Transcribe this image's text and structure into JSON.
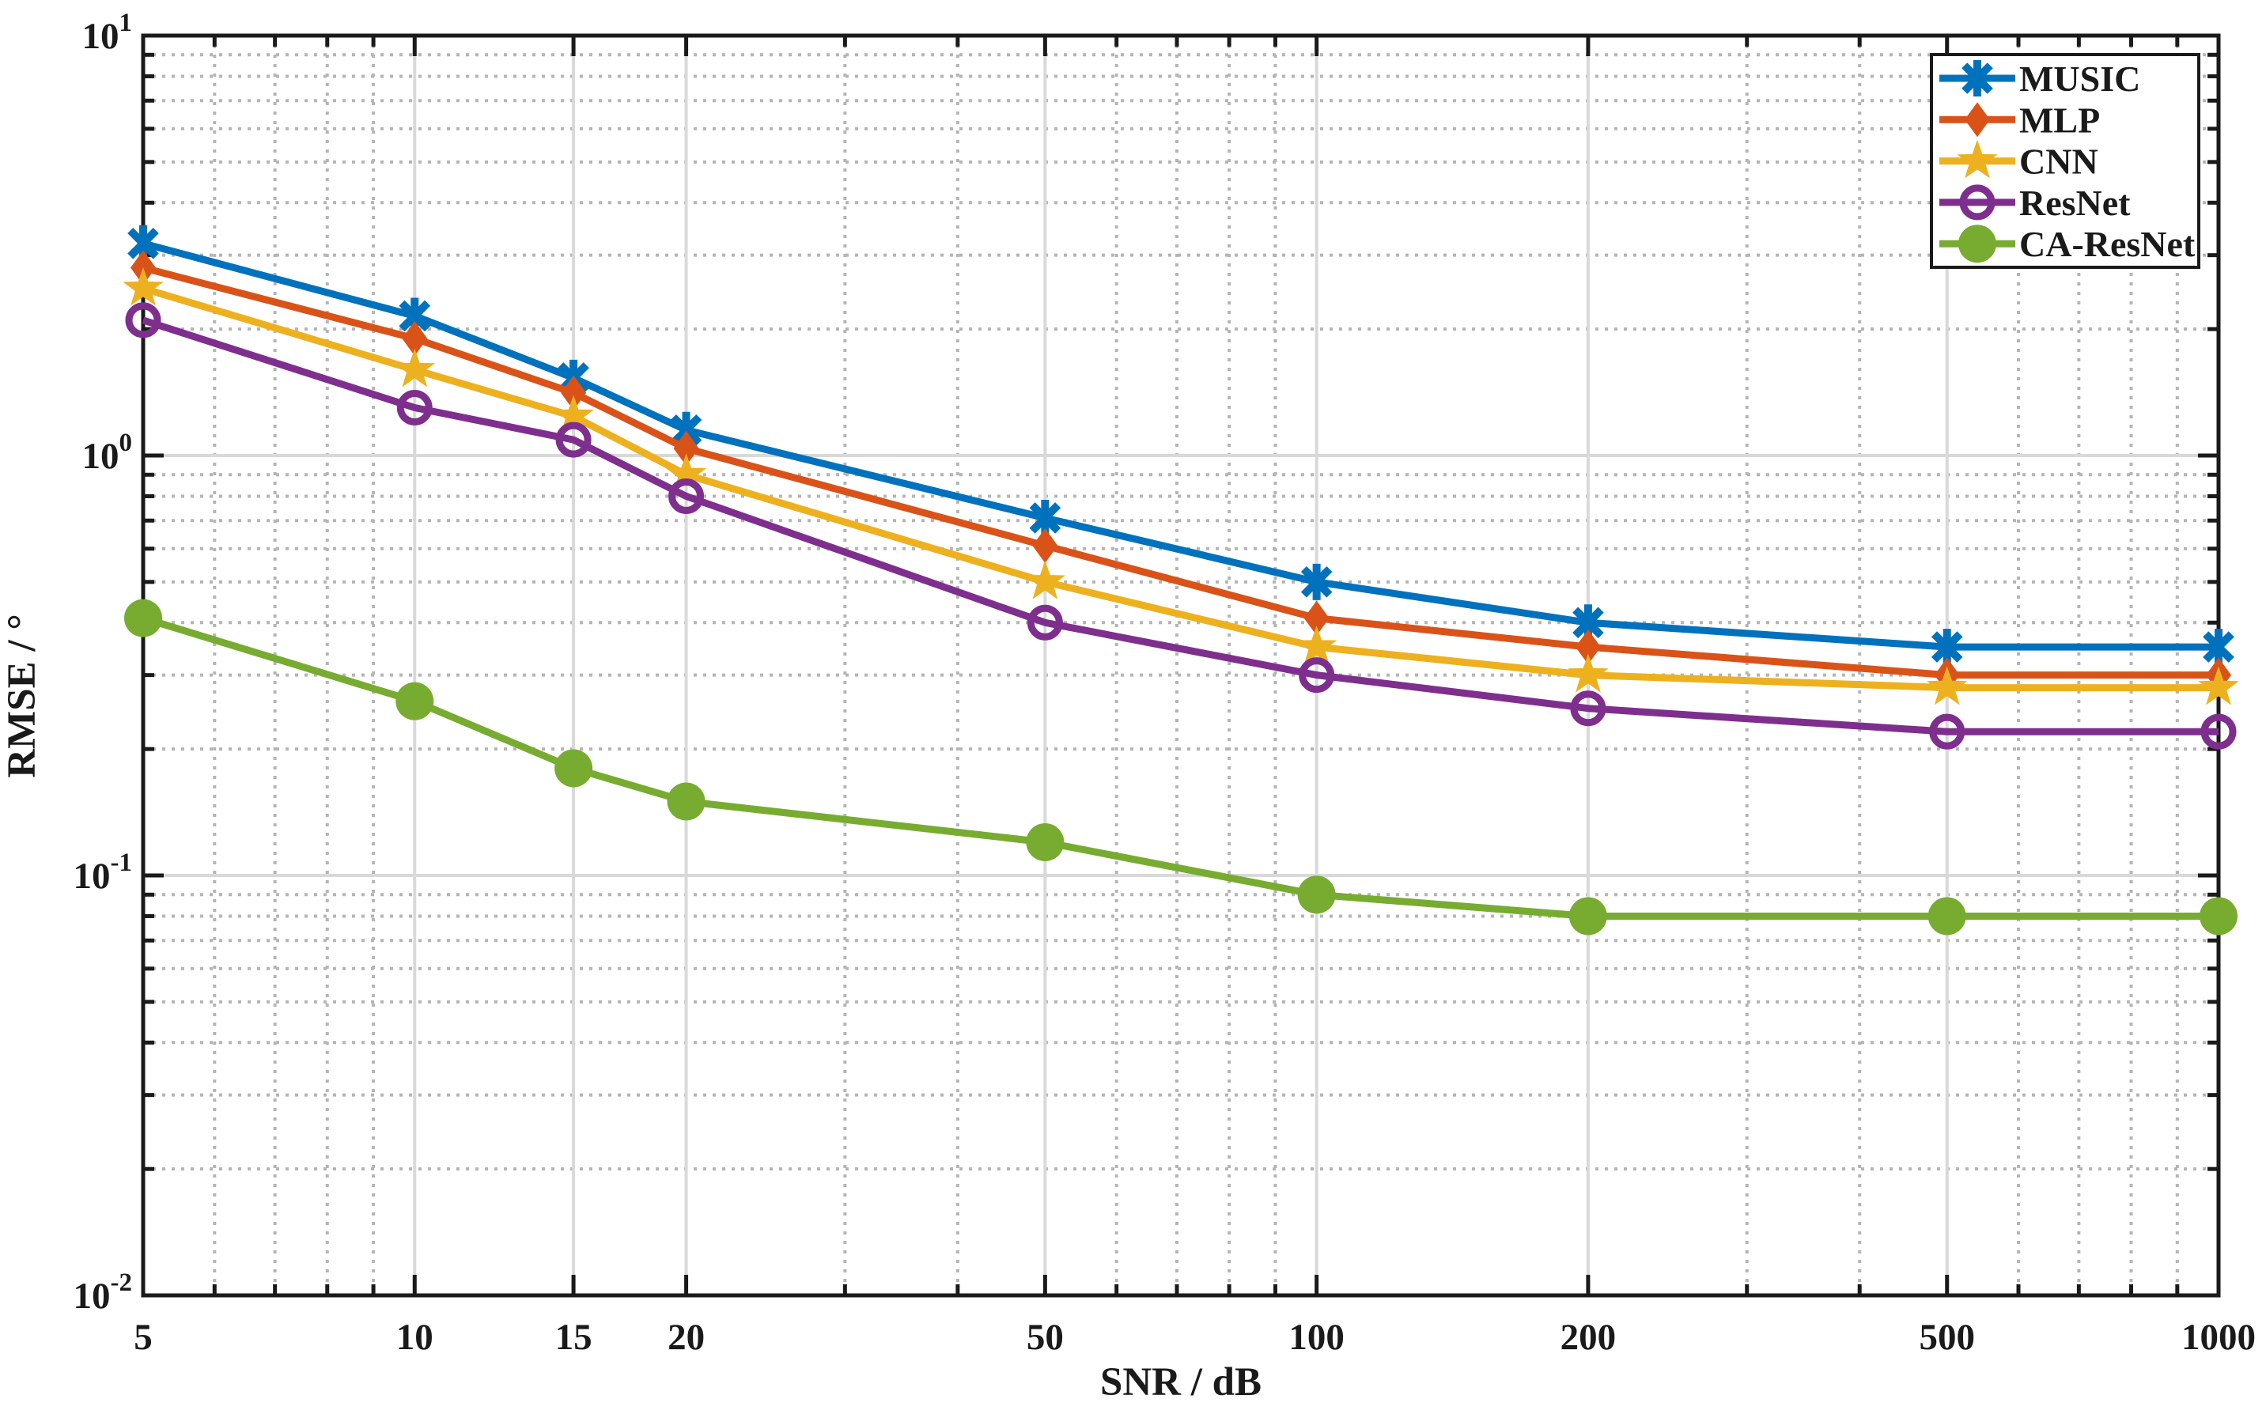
{
  "chart_data": {
    "type": "line",
    "title": "",
    "xlabel": "SNR / dB",
    "ylabel": "RMSE / °",
    "x_scale": "log",
    "y_scale": "log",
    "xlim": [
      5,
      1000
    ],
    "ylim": [
      0.01,
      10
    ],
    "grid": {
      "major": "solid-gray",
      "minor": "dotted-gray"
    },
    "x": [
      5,
      10,
      15,
      20,
      50,
      100,
      200,
      500,
      1000
    ],
    "x_tick_labels": [
      "5",
      "10",
      "15",
      "20",
      "50",
      "100",
      "200",
      "500",
      "1000"
    ],
    "y_tick_labels": [
      {
        "value": 10,
        "base": "10",
        "exp": "1"
      },
      {
        "value": 1,
        "base": "10",
        "exp": "0"
      },
      {
        "value": 0.1,
        "base": "10",
        "exp": "-1"
      },
      {
        "value": 0.01,
        "base": "10",
        "exp": "-2"
      }
    ],
    "legend": {
      "position": "top-right",
      "entries": [
        "MUSIC",
        "MLP",
        "CNN",
        "ResNet",
        "CA-ResNet"
      ]
    },
    "series": [
      {
        "name": "MUSIC",
        "color": "#0072BD",
        "marker": "asterisk",
        "values": [
          3.2,
          2.15,
          1.53,
          1.15,
          0.71,
          0.5,
          0.4,
          0.35,
          0.35
        ]
      },
      {
        "name": "MLP",
        "color": "#D95319",
        "marker": "diamond",
        "values": [
          2.8,
          1.9,
          1.41,
          1.04,
          0.61,
          0.41,
          0.35,
          0.3,
          0.3
        ]
      },
      {
        "name": "CNN",
        "color": "#EDB120",
        "marker": "pentagram",
        "values": [
          2.5,
          1.6,
          1.24,
          0.9,
          0.5,
          0.35,
          0.3,
          0.28,
          0.28
        ]
      },
      {
        "name": "ResNet",
        "color": "#7E2F8E",
        "marker": "circle-open",
        "values": [
          2.1,
          1.3,
          1.09,
          0.8,
          0.4,
          0.3,
          0.25,
          0.22,
          0.22
        ]
      },
      {
        "name": "CA-ResNet",
        "color": "#77AC30",
        "marker": "circle-filled",
        "values": [
          0.41,
          0.26,
          0.18,
          0.15,
          0.12,
          0.09,
          0.08,
          0.08,
          0.08
        ]
      }
    ],
    "colors": {
      "axis": "#1a1a1a",
      "major_grid": "#d9d9d9",
      "minor_grid": "#b5b5b5",
      "background": "#ffffff"
    }
  }
}
